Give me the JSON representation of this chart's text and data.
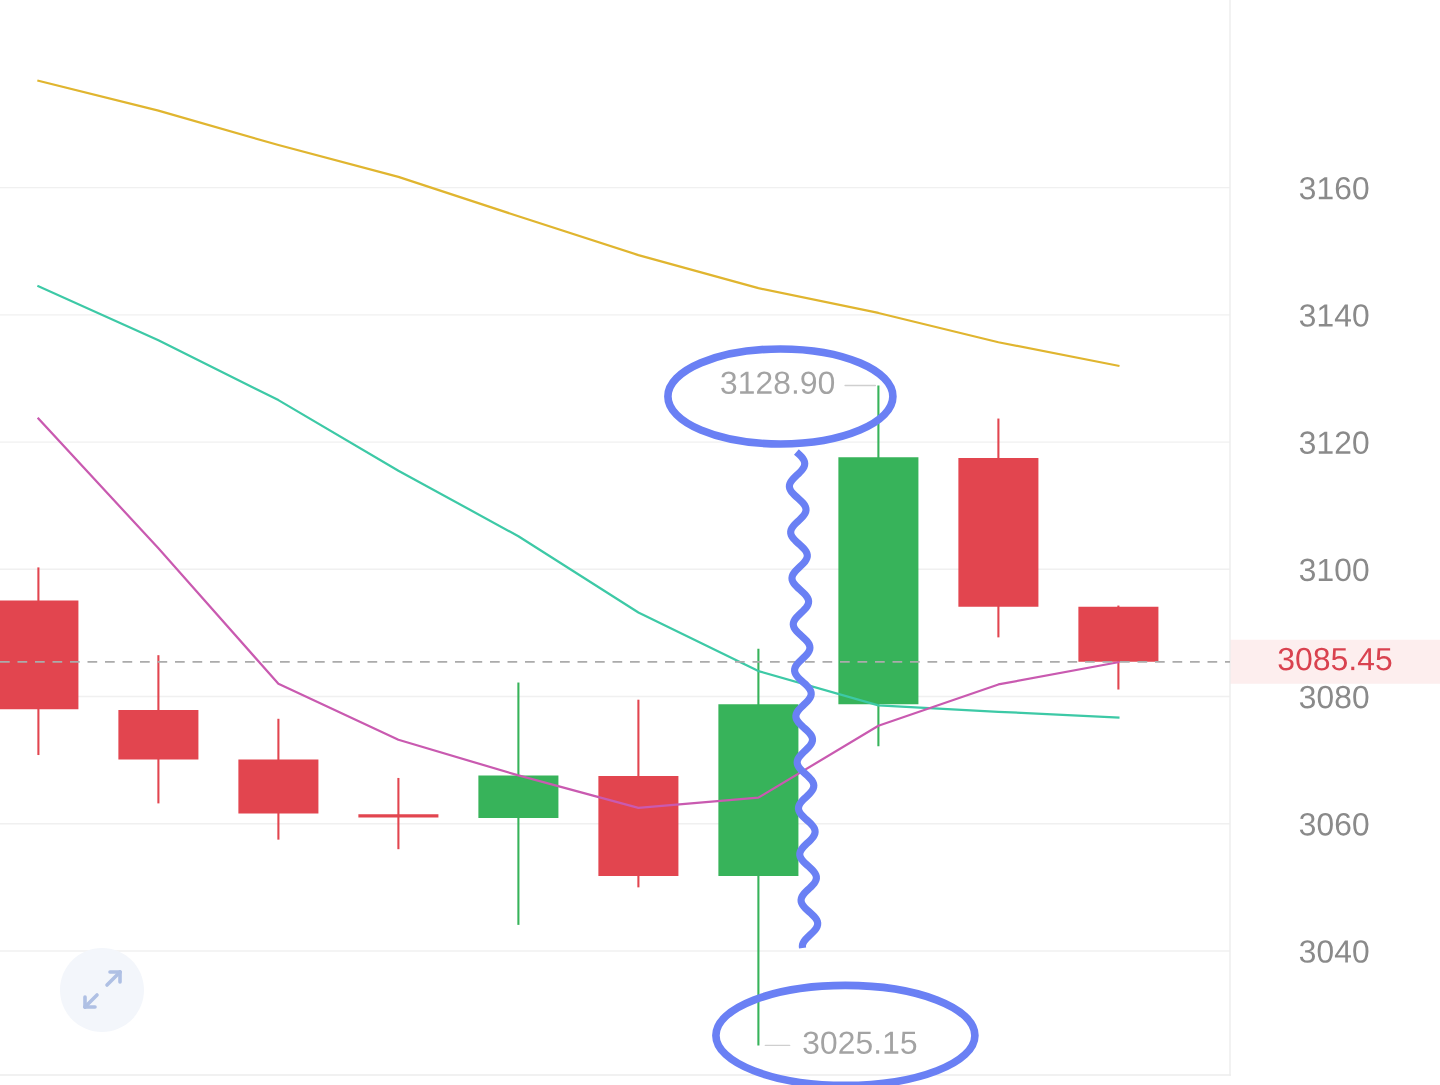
{
  "chart_data": {
    "type": "candlestick",
    "categories": [
      null,
      null,
      null,
      null,
      null,
      null,
      null,
      null,
      null,
      null
    ],
    "ohlc": [
      [
        3095.1,
        3100.3,
        3070.8,
        3078.0
      ],
      [
        3077.9,
        3086.5,
        3063.2,
        3070.1
      ],
      [
        3070.1,
        3076.5,
        3057.5,
        3061.6
      ],
      [
        3061.5,
        3067.2,
        3056.0,
        3061.0
      ],
      [
        3060.9,
        3082.2,
        3044.1,
        3067.6
      ],
      [
        3067.5,
        3079.5,
        3050.0,
        3051.8
      ],
      [
        3051.8,
        3087.5,
        3025.15,
        3078.8
      ],
      [
        3078.8,
        3128.9,
        3072.2,
        3117.6
      ],
      [
        3117.5,
        3123.7,
        3089.3,
        3094.1
      ],
      [
        3094.1,
        3094.3,
        3081.1,
        3085.45
      ]
    ],
    "colors": [
      "#e2454f",
      "#e2454f",
      "#e2454f",
      "#e2454f",
      "#37b35a",
      "#e2454f",
      "#37b35a",
      "#37b35a",
      "#e2454f",
      "#e2454f"
    ],
    "value_labels": [
      null,
      null,
      null,
      null,
      null,
      null,
      "3025.15",
      "3128.90",
      null,
      null
    ],
    "series": [
      {
        "type": "line",
        "color": "#e0b52f",
        "values": [
          3176.8,
          3172.1,
          3166.7,
          3161.7,
          3155.5,
          3149.4,
          3144.2,
          3140.3,
          3135.7,
          3132.0
        ]
      },
      {
        "type": "line",
        "color": "#3dc9a6",
        "values": [
          3144.5,
          3136.0,
          3126.6,
          3115.5,
          3105.2,
          3093.2,
          3084.0,
          3078.6,
          3077.6,
          3076.7
        ]
      },
      {
        "type": "line",
        "color": "#c95ab0",
        "values": [
          3123.7,
          3103.3,
          3082.0,
          3073.2,
          3067.6,
          3062.5,
          3064.1,
          3075.4,
          3081.9,
          3085.4
        ]
      }
    ],
    "ylim": [
      3020.5,
      3189.5
    ],
    "yticks": [
      3040,
      3060,
      3080,
      3100,
      3120,
      3140,
      3160
    ],
    "grid": "y",
    "tick_labels": "y",
    "marker": "none",
    "line_style": "solid",
    "ref_lines": [
      {
        "axis": "y",
        "value": 3085.45,
        "label": "3085.45",
        "color": "#ababab",
        "line_style": "dashed"
      }
    ]
  }
}
